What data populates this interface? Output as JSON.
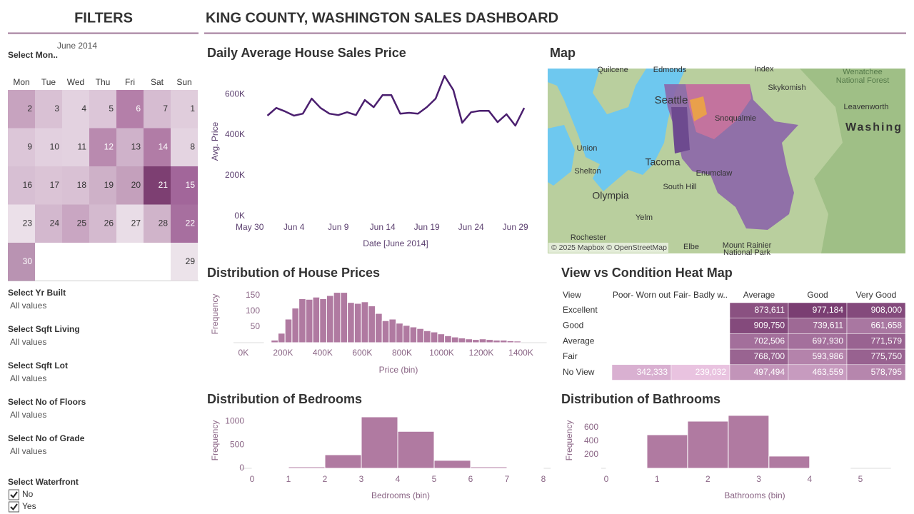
{
  "header": {
    "title": "KING COUNTY, WASHINGTON SALES DASHBOARD"
  },
  "filters": {
    "title": "FILTERS",
    "month_filter": {
      "label": "Select Mon..",
      "month": "June 2014",
      "weekdays": [
        "Mon",
        "Tue",
        "Wed",
        "Thu",
        "Fri",
        "Sat",
        "Sun"
      ],
      "weeks": [
        [
          2,
          3,
          4,
          5,
          6,
          7,
          1
        ],
        [
          9,
          10,
          11,
          12,
          13,
          14,
          8
        ],
        [
          16,
          17,
          18,
          19,
          20,
          21,
          15
        ],
        [
          23,
          24,
          25,
          26,
          27,
          28,
          22
        ],
        [
          30,
          null,
          null,
          null,
          null,
          null,
          29
        ]
      ],
      "colors": [
        [
          "#c7a3bf",
          "#d9c1d4",
          "#e3d2e0",
          "#dcc6d8",
          "#b47fa9",
          "#d6bcd1",
          "#e0cddc"
        ],
        [
          "#dcc6d8",
          "#e2d0df",
          "#e3d2e0",
          "#b98aaf",
          "#cfb2ca",
          "#b17ca6",
          "#e4d4e1"
        ],
        [
          "#d7bfd3",
          "#dbc4d6",
          "#d9c1d4",
          "#ceb1c8",
          "#c4a0bc",
          "#7d3f72",
          "#a2669a"
        ],
        [
          "#ebe0e9",
          "#d3b8ce",
          "#c9a6c2",
          "#d4bacf",
          "#e9dde7",
          "#d0b4ca",
          "#a76f9f"
        ],
        [
          "#b993b2",
          null,
          null,
          null,
          null,
          null,
          "#ece3ea"
        ]
      ]
    },
    "items": [
      {
        "label": "Select Yr Built",
        "value": "All values"
      },
      {
        "label": "Select Sqft Living",
        "value": "All values"
      },
      {
        "label": "Select Sqft Lot",
        "value": "All values"
      },
      {
        "label": "Select No of Floors",
        "value": "All values"
      },
      {
        "label": "Select No of Grade",
        "value": "All values"
      }
    ],
    "waterfront": {
      "label": "Select Waterfront",
      "options": [
        "No",
        "Yes"
      ],
      "checked": [
        true,
        true
      ]
    }
  },
  "map": {
    "title": "Map",
    "labels": [
      "Quilcene",
      "Edmonds",
      "Index",
      "Wenatchee",
      "National Forest",
      "Skykomish",
      "Seattle",
      "Snoqualmie",
      "Leavenworth",
      "Washing",
      "Union",
      "Tacoma",
      "Shelton",
      "Enumclaw",
      "South Hill",
      "Olympia",
      "Yelm",
      "Rochester",
      "Elbe",
      "Mount Rainier",
      "National Park"
    ],
    "attribution": "© 2025 Mapbox © OpenStreetMap"
  },
  "chart_data": [
    {
      "type": "line",
      "title": "Daily Average House Sales Price",
      "x_label": "Date [June 2014]",
      "y_label": "Avg. Price",
      "x": [
        1,
        2,
        3,
        4,
        5,
        6,
        7,
        8,
        9,
        10,
        11,
        12,
        13,
        14,
        15,
        16,
        17,
        18,
        19,
        20,
        21,
        22,
        23,
        24,
        25,
        26,
        27,
        28,
        29,
        30
      ],
      "values": [
        495000,
        533000,
        516000,
        495000,
        505000,
        579000,
        533000,
        505000,
        498000,
        512000,
        498000,
        572000,
        537000,
        596000,
        596000,
        505000,
        509000,
        505000,
        537000,
        579000,
        691000,
        621000,
        460000,
        512000,
        519000,
        519000,
        463000,
        502000,
        446000,
        533000
      ],
      "color": "#4b1f6f",
      "xlim": [
        -1,
        30.5
      ],
      "xticks": [
        {
          "value": -1,
          "label": "May 30"
        },
        {
          "value": 4,
          "label": "Jun 4"
        },
        {
          "value": 9,
          "label": "Jun 9"
        },
        {
          "value": 14,
          "label": "Jun 14"
        },
        {
          "value": 19,
          "label": "Jun 19"
        },
        {
          "value": 24,
          "label": "Jun 24"
        },
        {
          "value": 29,
          "label": "Jun 29"
        }
      ],
      "ylim": [
        -25000,
        720000
      ],
      "yticks": [
        {
          "value": 0,
          "label": "0K"
        },
        {
          "value": 200000,
          "label": "200K"
        },
        {
          "value": 400000,
          "label": "400K"
        },
        {
          "value": 600000,
          "label": "600K"
        }
      ]
    },
    {
      "type": "histogram",
      "title": "Distribution of House Prices",
      "x_label": "Price (bin)",
      "y_label": "Frequency",
      "bins": [
        105000,
        140000,
        175000,
        210000,
        245000,
        280000,
        315000,
        350000,
        385000,
        420000,
        455000,
        490000,
        525000,
        560000,
        595000,
        630000,
        665000,
        700000,
        735000,
        770000,
        805000,
        840000,
        875000,
        910000,
        945000,
        980000,
        1015000,
        1050000,
        1085000,
        1120000,
        1155000,
        1190000,
        1225000,
        1260000,
        1295000,
        1330000,
        1365000,
        1400000
      ],
      "values": [
        2,
        8,
        30,
        75,
        110,
        140,
        138,
        145,
        140,
        150,
        160,
        160,
        128,
        125,
        130,
        117,
        93,
        70,
        75,
        62,
        55,
        50,
        45,
        38,
        34,
        28,
        22,
        18,
        15,
        12,
        10,
        12,
        10,
        8,
        8,
        6,
        5
      ],
      "color": "#b07aa1",
      "xlim": [
        -50000,
        1530000
      ],
      "xticks": [
        {
          "value": 0,
          "label": "0K"
        },
        {
          "value": 200000,
          "label": "200K"
        },
        {
          "value": 400000,
          "label": "400K"
        },
        {
          "value": 600000,
          "label": "600K"
        },
        {
          "value": 800000,
          "label": "800K"
        },
        {
          "value": 1000000,
          "label": "1000K"
        },
        {
          "value": 1200000,
          "label": "1200K"
        },
        {
          "value": 1400000,
          "label": "1400K"
        }
      ],
      "ylim": [
        0,
        170
      ],
      "yticks": [
        50,
        100,
        150
      ]
    },
    {
      "type": "heatmap",
      "title": "View vs Condition Heat Map",
      "corner_label": "View",
      "x_categories": [
        "Poor- Worn out",
        "Fair- Badly w..",
        "Average",
        "Good",
        "Very Good"
      ],
      "y_categories": [
        "Excellent",
        "Good",
        "Average",
        "Fair",
        "No View"
      ],
      "values": [
        [
          null,
          null,
          873611,
          977184,
          908000
        ],
        [
          null,
          null,
          909750,
          739611,
          661658
        ],
        [
          null,
          null,
          702506,
          697930,
          771579
        ],
        [
          null,
          null,
          768700,
          593986,
          775750
        ],
        [
          342333,
          239032,
          497494,
          463559,
          578795
        ]
      ],
      "value_labels": [
        [
          null,
          null,
          "873,611",
          "977,184",
          "908,000"
        ],
        [
          null,
          null,
          "909,750",
          "739,611",
          "661,658"
        ],
        [
          null,
          null,
          "702,506",
          "697,930",
          "771,579"
        ],
        [
          null,
          null,
          "768,700",
          "593,986",
          "775,750"
        ],
        [
          "342,333",
          "239,032",
          "497,494",
          "463,559",
          "578,795"
        ]
      ],
      "color_range": [
        "#e9c3e0",
        "#7a3e72"
      ]
    },
    {
      "type": "histogram",
      "title": "Distribution of Bedrooms",
      "x_label": "Bedrooms (bin)",
      "y_label": "Frequency",
      "bins": [
        0,
        1,
        2,
        3,
        4,
        5,
        6,
        7,
        8
      ],
      "values": [
        3,
        30,
        290,
        1100,
        790,
        170,
        30,
        5
      ],
      "color": "#b07aa1",
      "xlim": [
        -0.3,
        8.2
      ],
      "xticks": [
        0,
        1,
        2,
        3,
        4,
        5,
        6,
        7,
        8
      ],
      "ylim": [
        0,
        1150
      ],
      "yticks": [
        0,
        500,
        1000
      ]
    },
    {
      "type": "histogram",
      "title": "Distribution of Bathrooms",
      "x_label": "Bathrooms (bin)",
      "y_label": "Frequency",
      "bins": [
        0,
        0.8,
        1.6,
        2.4,
        3.2,
        4.0,
        4.8
      ],
      "values": [
        5,
        495,
        695,
        780,
        180,
        10
      ],
      "color": "#b07aa1",
      "xlim": [
        -0.1,
        5.6
      ],
      "xticks": [
        0,
        1,
        2,
        3,
        4,
        5
      ],
      "ylim": [
        0,
        850
      ],
      "yticks": [
        200,
        400,
        600
      ]
    }
  ]
}
